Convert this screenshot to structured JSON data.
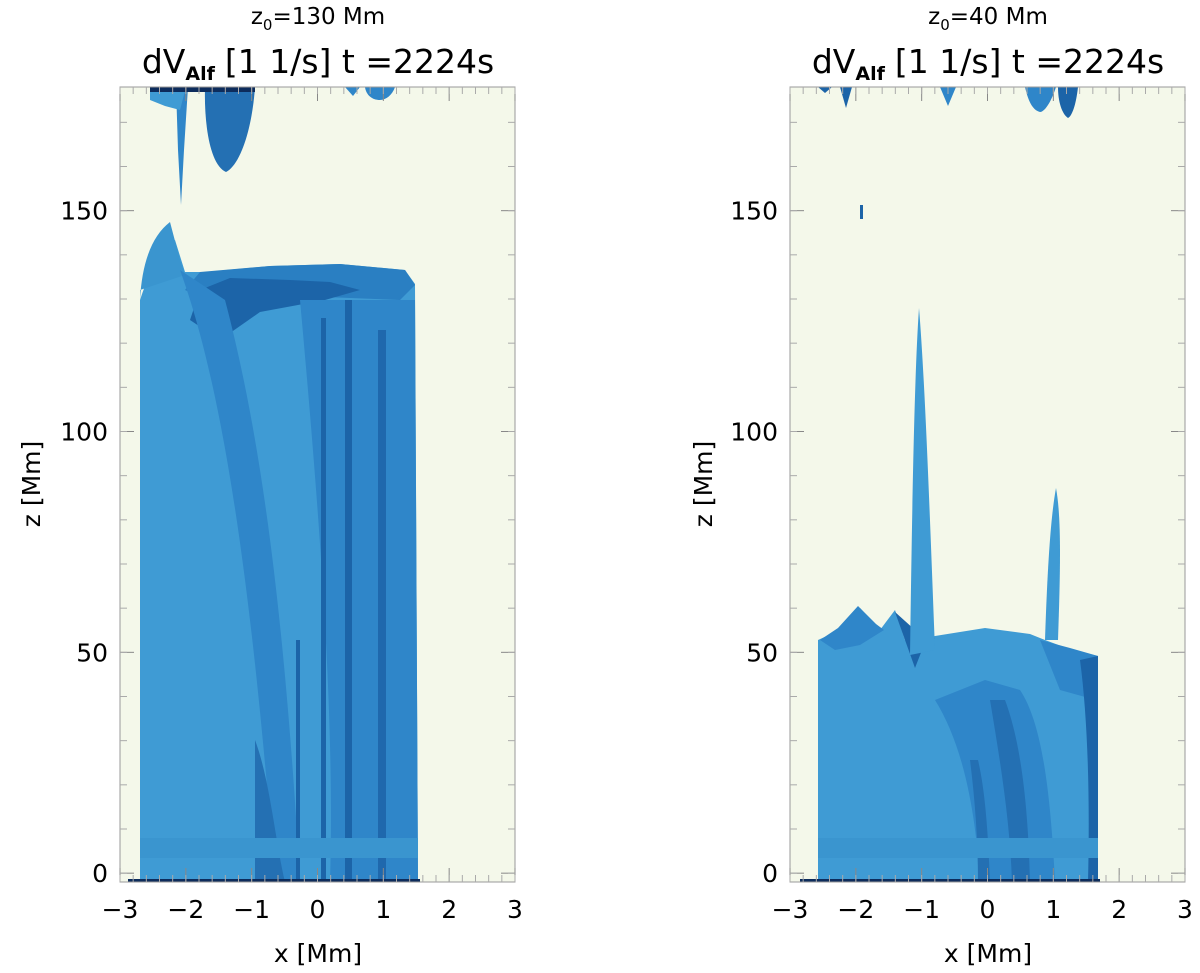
{
  "chart_data": [
    {
      "type": "heatmap",
      "title_line1": "z₀=130 Mm",
      "title_line2": "dV_Alf [1 1/s] t =2224s",
      "title_quantity_main": "dV",
      "title_quantity_sub": "Alf",
      "title_units": "[1 1/s] t =2224s",
      "subtitle_prefix": "z",
      "subtitle_sub": "0",
      "subtitle_rest": "=130 Mm",
      "xlabel": "x [Mm]",
      "ylabel": "z [Mm]",
      "xlim": [
        -3,
        3
      ],
      "ylim": [
        -2,
        178
      ],
      "xticks": [
        -3,
        -2,
        -1,
        0,
        1,
        2,
        3
      ],
      "yticks": [
        0,
        50,
        100,
        150
      ],
      "grid": false,
      "colors": {
        "background": "#f4f8ea",
        "light": "#3f9bd4",
        "mid": "#2f86c9",
        "dark": "#1c64a8",
        "darkest": "#0d2c5c"
      },
      "regions": {
        "main_block": {
          "x_range": [
            -2.7,
            1.65
          ],
          "z_top_range": [
            136,
            139
          ]
        },
        "left_tongue": {
          "x_range": [
            -2.6,
            -1.75
          ],
          "z_top": 152
        },
        "top_plumes": [
          {
            "x": -2.0,
            "z_bottom": 150
          },
          {
            "x": -1.45,
            "z_bottom": 160
          }
        ]
      }
    },
    {
      "type": "heatmap",
      "title_line1": "z₀=40 Mm",
      "title_line2": "dV_Alf [1 1/s] t =2224s",
      "title_quantity_main": "dV",
      "title_quantity_sub": "Alf",
      "title_units": "[1 1/s] t =2224s",
      "subtitle_prefix": "z",
      "subtitle_sub": "0",
      "subtitle_rest": "=40 Mm",
      "xlabel": "x [Mm]",
      "ylabel": "z [Mm]",
      "xlim": [
        -3,
        3
      ],
      "ylim": [
        -2,
        178
      ],
      "xticks": [
        -3,
        -2,
        -1,
        0,
        1,
        2,
        3
      ],
      "yticks": [
        0,
        50,
        100,
        150
      ],
      "grid": false,
      "colors": {
        "background": "#f4f8ea",
        "light": "#3f9bd4",
        "mid": "#2f86c9",
        "dark": "#1c64a8",
        "darkest": "#0d2c5c"
      },
      "regions": {
        "main_block": {
          "x_range": [
            -2.7,
            1.65
          ],
          "z_top_range": [
            51,
            58
          ]
        },
        "spikes": [
          {
            "x": -1.0,
            "z_top": 130
          },
          {
            "x": 1.05,
            "z_top": 89
          }
        ]
      }
    }
  ]
}
